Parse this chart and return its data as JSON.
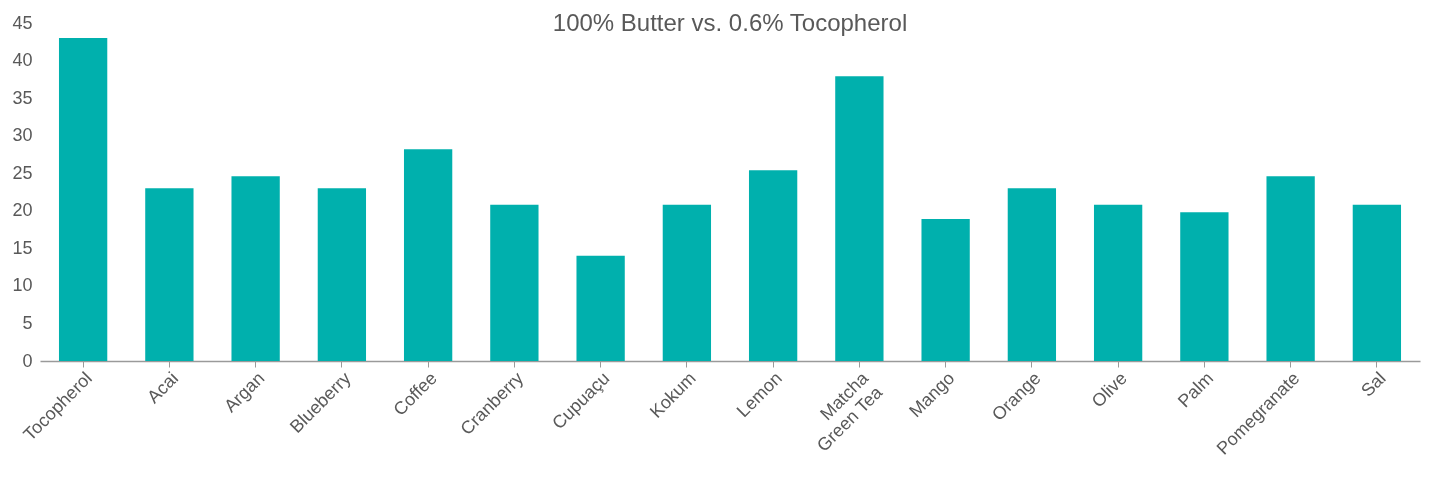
{
  "chart_data": {
    "type": "bar",
    "title": "100% Butter vs. 0.6% Tocopherol",
    "categories": [
      "Tocopherol",
      "Acai",
      "Argan",
      "Blueberry",
      "Coffee",
      "Cranberry",
      "Cupuaçu",
      "Kokum",
      "Lemon",
      "Matcha\nGreen Tea",
      "Mango",
      "Orange",
      "Olive",
      "Palm",
      "Pomegranate",
      "Sal"
    ],
    "values": [
      43.0,
      23.0,
      24.6,
      23.0,
      28.2,
      20.8,
      14.0,
      20.8,
      25.4,
      37.9,
      18.9,
      23.0,
      20.8,
      19.8,
      24.6,
      20.8
    ],
    "color": "#00b0ad",
    "ylim": [
      0,
      45
    ],
    "yticks": [
      0,
      5,
      10,
      15,
      20,
      25,
      30,
      35,
      40,
      45
    ],
    "grid": false
  }
}
